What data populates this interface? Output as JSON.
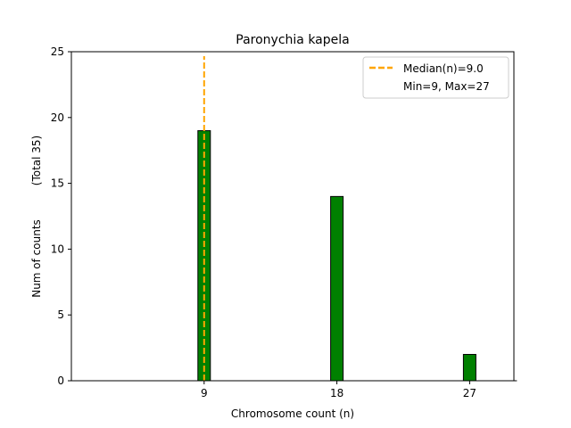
{
  "chart_data": {
    "type": "bar",
    "title": "Paronychia kapela",
    "xlabel": "Chromosome count (n)",
    "ylabel": "Num of counts",
    "ylabel2": "(Total 35)",
    "x": [
      9,
      18,
      27
    ],
    "values": [
      19,
      14,
      2
    ],
    "xticks": [
      "9",
      "18",
      "27"
    ],
    "yticks": [
      "0",
      "5",
      "10",
      "15",
      "20",
      "25"
    ],
    "xlim": [
      0,
      30
    ],
    "ylim": [
      0,
      25
    ],
    "median": 9.0,
    "grid": false,
    "legend_position": "top-right",
    "legend": {
      "median_label": "Median(n)=9.0",
      "range_label": "Min=9, Max=27"
    },
    "colors": {
      "bar": "#008000",
      "bar_edge": "#000000",
      "median_line": "#FFA500"
    }
  }
}
